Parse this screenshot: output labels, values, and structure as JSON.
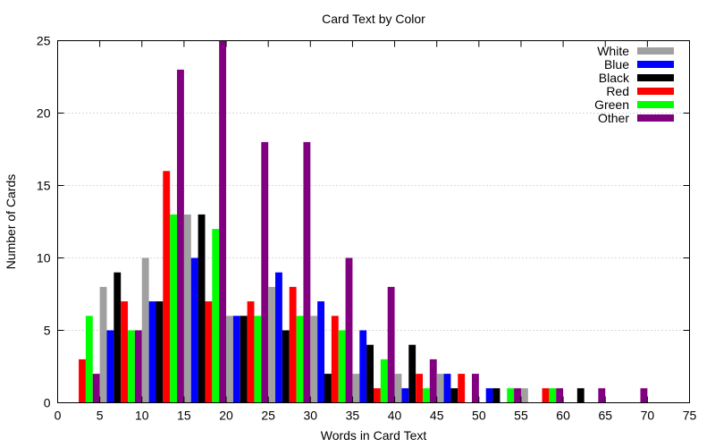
{
  "chart_data": {
    "type": "bar",
    "title": "Card Text by Color",
    "xlabel": "Words in Card Text",
    "ylabel": "Number of Cards",
    "xlim": [
      0,
      75
    ],
    "ylim": [
      0,
      25
    ],
    "xticks": [
      0,
      5,
      10,
      15,
      20,
      25,
      30,
      35,
      40,
      45,
      50,
      55,
      60,
      65,
      70,
      75
    ],
    "yticks": [
      0,
      5,
      10,
      15,
      20,
      25
    ],
    "grid": "horizontal dotted",
    "legend_position": "top-right",
    "bin_starts": [
      0,
      5,
      10,
      15,
      20,
      25,
      30,
      35,
      40,
      45,
      50,
      55,
      60,
      65,
      70
    ],
    "series": [
      {
        "name": "White",
        "color": "#a0a0a0",
        "values": [
          0,
          8,
          10,
          13,
          6,
          8,
          6,
          2,
          2,
          2,
          0,
          1,
          0,
          0,
          0
        ]
      },
      {
        "name": "Blue",
        "color": "#0000ff",
        "values": [
          0,
          5,
          7,
          10,
          6,
          9,
          7,
          5,
          1,
          2,
          1,
          0,
          0,
          0,
          0
        ]
      },
      {
        "name": "Black",
        "color": "#000000",
        "values": [
          0,
          9,
          7,
          13,
          6,
          5,
          2,
          4,
          4,
          1,
          1,
          0,
          1,
          0,
          0
        ]
      },
      {
        "name": "Red",
        "color": "#ff0000",
        "values": [
          3,
          7,
          16,
          7,
          7,
          8,
          6,
          1,
          2,
          2,
          0,
          1,
          0,
          0,
          0
        ]
      },
      {
        "name": "Green",
        "color": "#00ff00",
        "values": [
          6,
          5,
          13,
          12,
          6,
          6,
          5,
          3,
          1,
          0,
          1,
          1,
          0,
          0,
          0
        ]
      },
      {
        "name": "Other",
        "color": "#800080",
        "values": [
          2,
          5,
          23,
          25,
          18,
          18,
          10,
          8,
          3,
          2,
          1,
          1,
          1,
          1,
          0
        ]
      }
    ]
  }
}
